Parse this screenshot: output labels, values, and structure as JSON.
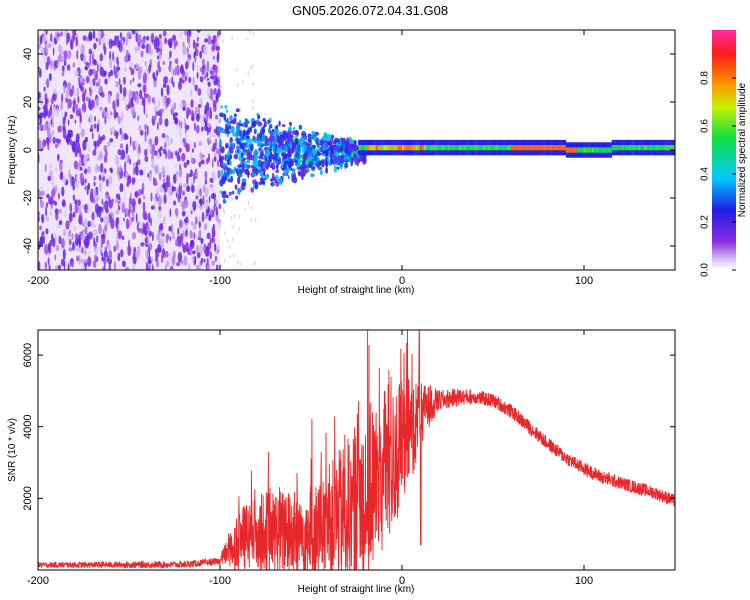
{
  "title": "GN05.2026.072.04.31.G08",
  "chart_data": [
    {
      "type": "heatmap",
      "name": "spectrogram",
      "xlabel": "Height of straight line (km)",
      "ylabel": "Frequency (Hz)",
      "xlim": [
        -200,
        150
      ],
      "ylim": [
        -50,
        50
      ],
      "xticks": [
        -200,
        -100,
        0,
        100
      ],
      "yticks": [
        -40,
        -20,
        0,
        20,
        40
      ],
      "colorbar": {
        "label": "Normalized spectral amplitude",
        "range": [
          0.0,
          1.0
        ],
        "ticks": [
          0.0,
          0.2,
          0.4,
          0.6,
          0.8
        ],
        "tick_labels": [
          "0.0",
          "0.2",
          "0.4",
          "0.6",
          "0.8"
        ]
      },
      "description_regions": [
        {
          "x_range": [
            -200,
            -100
          ],
          "freq_range": [
            -50,
            50
          ],
          "amplitude": 0.15,
          "pattern": "noise"
        },
        {
          "x_range": [
            -100,
            -20
          ],
          "freq_range": [
            -20,
            15
          ],
          "amplitude": 0.3,
          "pattern": "scattered"
        },
        {
          "x_range": [
            -20,
            150
          ],
          "freq_center": 1,
          "freq_halfwidth": 3,
          "amplitude": 0.8,
          "pattern": "carrier"
        }
      ]
    },
    {
      "type": "line",
      "name": "snr",
      "xlabel": "Height of straight line (km)",
      "ylabel": "SNR (10 * v/v)",
      "xlim": [
        -200,
        150
      ],
      "ylim": [
        0,
        6700
      ],
      "xticks": [
        -200,
        -100,
        0,
        100
      ],
      "yticks": [
        2000,
        4000,
        6000
      ],
      "color": "#e8272a",
      "envelope": {
        "x": [
          -200,
          -120,
          -100,
          -95,
          -85,
          -75,
          -65,
          -55,
          -45,
          -35,
          -28,
          -22,
          -15,
          -10,
          -5,
          0,
          5,
          10,
          15,
          20,
          25,
          30,
          40,
          50,
          60,
          70,
          80,
          90,
          100,
          110,
          120,
          130,
          140,
          150
        ],
        "y": [
          150,
          160,
          250,
          650,
          1050,
          1200,
          1150,
          1100,
          1250,
          1700,
          1900,
          2300,
          2600,
          3000,
          3300,
          3700,
          4100,
          4400,
          4650,
          4750,
          4800,
          4850,
          4850,
          4750,
          4450,
          4000,
          3550,
          3150,
          2850,
          2600,
          2450,
          2300,
          2150,
          1950
        ]
      },
      "noise_amplitude": {
        "x": [
          -200,
          -100,
          -90,
          -70,
          -50,
          -35,
          -25,
          -15,
          -5,
          0,
          5,
          10,
          20,
          40,
          150
        ],
        "y": [
          80,
          100,
          900,
          1200,
          1300,
          1800,
          2300,
          2500,
          2200,
          1800,
          1500,
          900,
          300,
          200,
          180
        ]
      },
      "annotation": "spike ≈ 6700 near x ≈ 10"
    }
  ]
}
